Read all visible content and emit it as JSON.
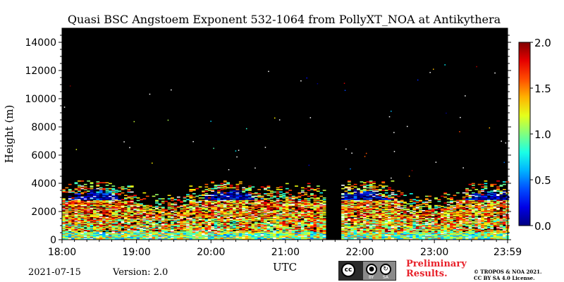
{
  "chart_data": {
    "type": "heatmap",
    "title": "Quasi BSC Angstoem Exponent 532-1064 from PollyXT_NOA at Antikythera",
    "xlabel": "UTC",
    "ylabel": "Height (m)",
    "x_ticks": [
      "18:00",
      "19:00",
      "20:00",
      "21:00",
      "22:00",
      "23:00",
      "23:59"
    ],
    "x_tick_minutes": [
      0,
      60,
      120,
      180,
      240,
      300,
      359
    ],
    "xlim_minutes": [
      0,
      359
    ],
    "y_ticks": [
      0,
      2000,
      4000,
      6000,
      8000,
      10000,
      12000,
      14000
    ],
    "ylim": [
      0,
      15000
    ],
    "colorbar": {
      "ticks": [
        "0.0",
        "0.5",
        "1.0",
        "1.5",
        "2.0"
      ],
      "tick_values": [
        0,
        0.5,
        1,
        1.5,
        2
      ],
      "range": [
        0,
        2
      ],
      "colormap": "jet"
    },
    "layers": [
      {
        "from_m": 0,
        "to_m": 500,
        "angstrom_exponent_approx": 1.0
      },
      {
        "from_m": 500,
        "to_m": 1500,
        "angstrom_exponent_approx": 1.3
      },
      {
        "from_m": 1500,
        "to_m": 2800,
        "angstrom_exponent_approx": 1.5
      }
    ],
    "no_data_gap_utc": [
      "21:33",
      "21:44"
    ],
    "background_color": "#000000",
    "grid": false
  },
  "footer": {
    "date": "2021-07-15",
    "version": "Version: 2.0",
    "preliminary": [
      "Preliminary",
      "Results."
    ],
    "license": [
      "© TROPOS & NOA 2021.",
      "CC BY SA 4.0 License."
    ],
    "cc_badge": {
      "cc": "cc",
      "by": "BY",
      "sa": "SA"
    }
  }
}
